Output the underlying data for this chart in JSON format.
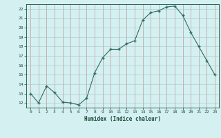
{
  "x": [
    0,
    1,
    2,
    3,
    4,
    5,
    6,
    7,
    8,
    9,
    10,
    11,
    12,
    13,
    14,
    15,
    16,
    17,
    18,
    19,
    20,
    21,
    22,
    23
  ],
  "y": [
    13,
    12,
    13.8,
    13.1,
    12.1,
    12.0,
    11.8,
    12.5,
    15.2,
    16.8,
    17.7,
    17.7,
    18.3,
    18.6,
    20.8,
    21.6,
    21.8,
    22.2,
    22.3,
    21.3,
    19.5,
    18.0,
    16.5,
    15.0
  ],
  "title": "",
  "xlabel": "Humidex (Indice chaleur)",
  "ylabel": "",
  "xlim": [
    -0.5,
    23.5
  ],
  "ylim": [
    11.5,
    22.5
  ],
  "yticks": [
    12,
    13,
    14,
    15,
    16,
    17,
    18,
    19,
    20,
    21,
    22
  ],
  "xticks": [
    0,
    1,
    2,
    3,
    4,
    5,
    6,
    7,
    8,
    9,
    10,
    11,
    12,
    13,
    14,
    15,
    16,
    17,
    18,
    19,
    20,
    21,
    22,
    23
  ],
  "line_color": "#2e6b5e",
  "marker": "+",
  "bg_color": "#d4f0f0",
  "grid_color_v": "#c08080",
  "grid_color_h": "#a0c8c8",
  "tick_label_color": "#1a4a3a",
  "axis_label_color": "#1a4a3a"
}
